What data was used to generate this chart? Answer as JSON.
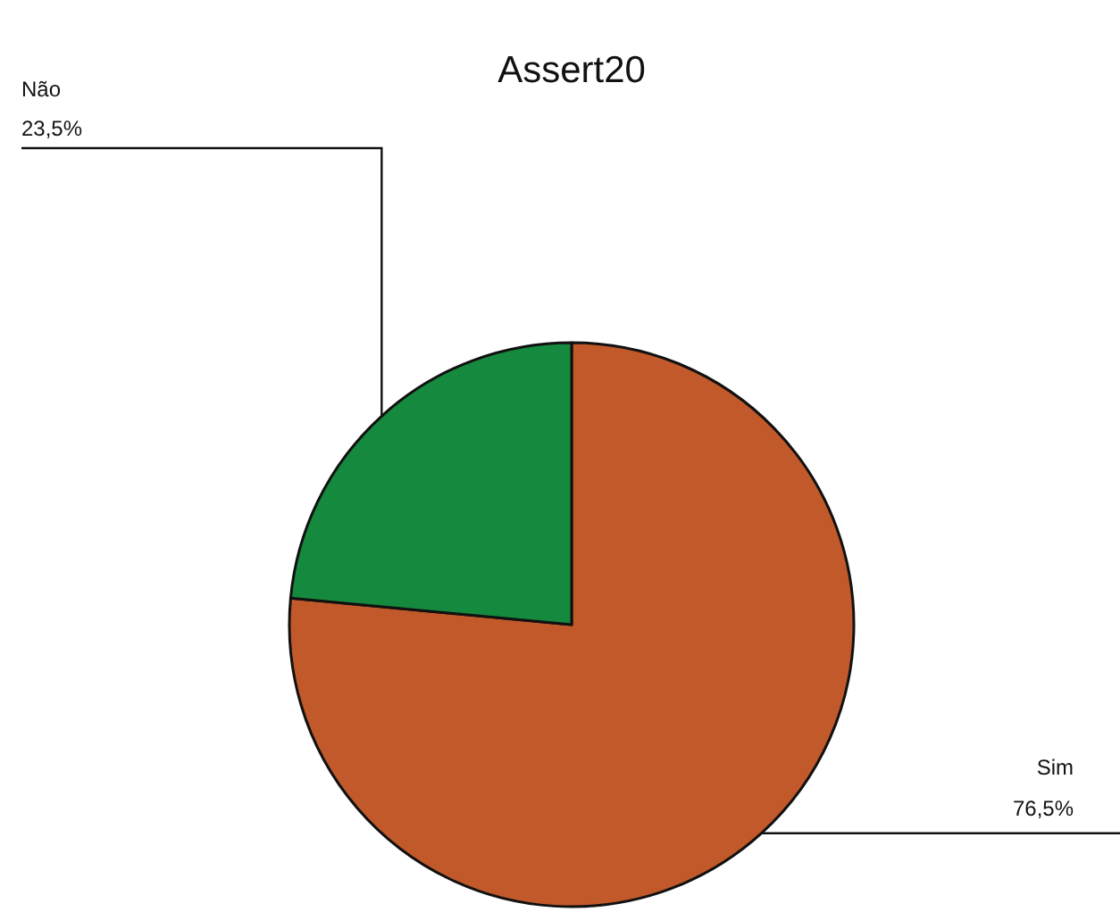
{
  "chart_data": {
    "type": "pie",
    "title": "Assert20",
    "categories": [
      "Sim",
      "Não"
    ],
    "values": [
      76.5,
      23.5
    ],
    "colors": [
      "#c1592b",
      "#15893d"
    ],
    "value_labels": [
      "76,5%",
      "23,5%"
    ]
  }
}
